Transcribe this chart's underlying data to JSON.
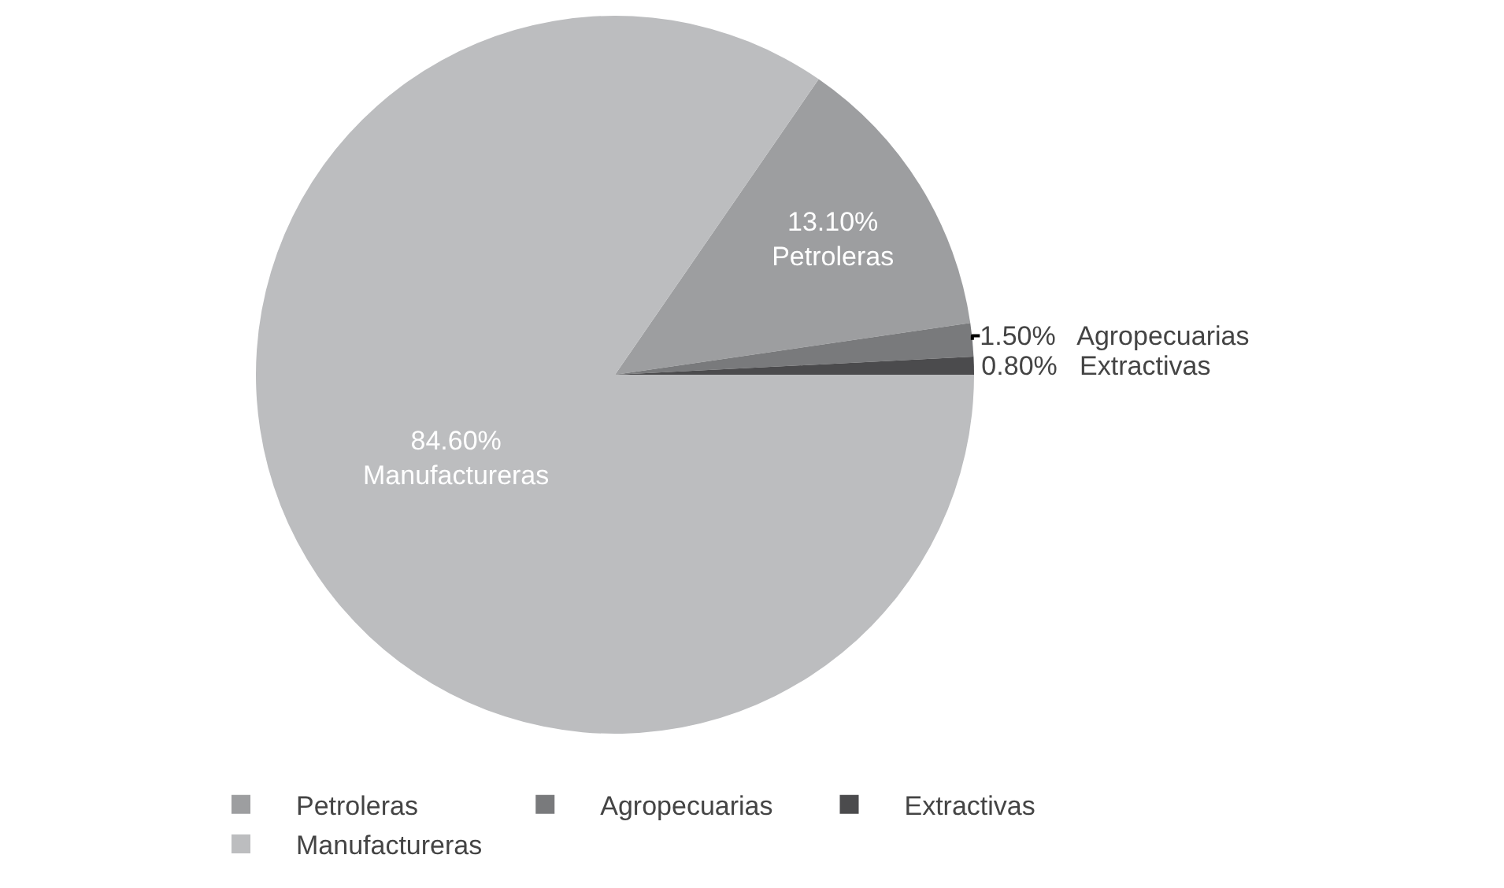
{
  "chart_data": {
    "type": "pie",
    "categories": [
      "Petroleras",
      "Agropecuarias",
      "Extractivas",
      "Manufactureras"
    ],
    "values": [
      13.1,
      1.5,
      0.8,
      84.6
    ],
    "value_labels": [
      "13.10%",
      "1.50%",
      "0.80%",
      "84.60%"
    ],
    "colors": [
      "#9d9ea0",
      "#797a7c",
      "#4b4b4d",
      "#bcbdbf"
    ],
    "legend": "bottom"
  }
}
